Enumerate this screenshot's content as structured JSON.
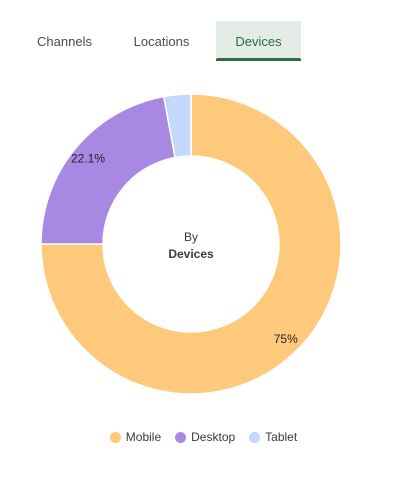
{
  "tabs": [
    {
      "label": "Channels",
      "active": false
    },
    {
      "label": "Locations",
      "active": false
    },
    {
      "label": "Devices",
      "active": true
    }
  ],
  "chart_data": {
    "type": "pie",
    "categories": [
      "Mobile",
      "Desktop",
      "Tablet"
    ],
    "values": [
      75,
      22.1,
      2.9
    ],
    "data_labels": [
      "75%",
      "22.1%",
      ""
    ],
    "colors": [
      "#ffc97c",
      "#a988e3",
      "#c4d8fb"
    ],
    "center_label": {
      "line1": "By",
      "line2": "Devices"
    },
    "legend": "bottom"
  }
}
